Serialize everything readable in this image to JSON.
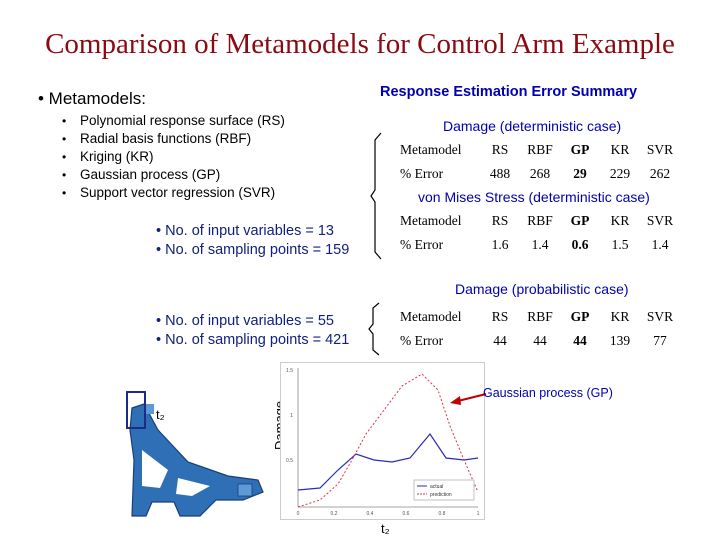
{
  "title": "Comparison of Metamodels for Control Arm Example",
  "metamodels": {
    "heading": "• Metamodels:",
    "items": [
      "Polynomial response surface (RS)",
      "Radial basis functions (RBF)",
      "Kriging (KR)",
      "Gaussian process (GP)",
      "Support vector regression (SVR)"
    ]
  },
  "case1_info": [
    "• No. of input variables = 13",
    "• No. of sampling points = 159"
  ],
  "case2_info": [
    "• No. of input variables = 55",
    "• No. of sampling points = 421"
  ],
  "summary_title": "Response Estimation Error Summary",
  "tables": [
    {
      "label": "Damage (deterministic case)",
      "header": [
        "Metamodel",
        "RS",
        "RBF",
        "GP",
        "KR",
        "SVR"
      ],
      "row": [
        "% Error",
        "488",
        "268",
        "29",
        "229",
        "262"
      ]
    },
    {
      "label": "von Mises Stress (deterministic case)",
      "header": [
        "Metamodel",
        "RS",
        "RBF",
        "GP",
        "KR",
        "SVR"
      ],
      "row": [
        "% Error",
        "1.6",
        "1.4",
        "0.6",
        "1.5",
        "1.4"
      ]
    },
    {
      "label": "Damage (probabilistic case)",
      "header": [
        "Metamodel",
        "RS",
        "RBF",
        "GP",
        "KR",
        "SVR"
      ],
      "row": [
        "% Error",
        "44",
        "44",
        "44",
        "139",
        "77"
      ]
    }
  ],
  "plot": {
    "ylabel": "Damage",
    "xlabel": "t₂",
    "callout": "Gaussian process (GP)",
    "y_ticks": [
      "1.5",
      "1",
      "0.5"
    ],
    "x_ticks": [
      "0",
      "0.2",
      "0.4",
      "0.6",
      "0.8",
      "1"
    ],
    "legend": [
      "actual",
      "prediction"
    ],
    "series_colors": {
      "actual": "#2a2ab8",
      "prediction": "#e0304a"
    }
  },
  "part_label": "t₂"
}
